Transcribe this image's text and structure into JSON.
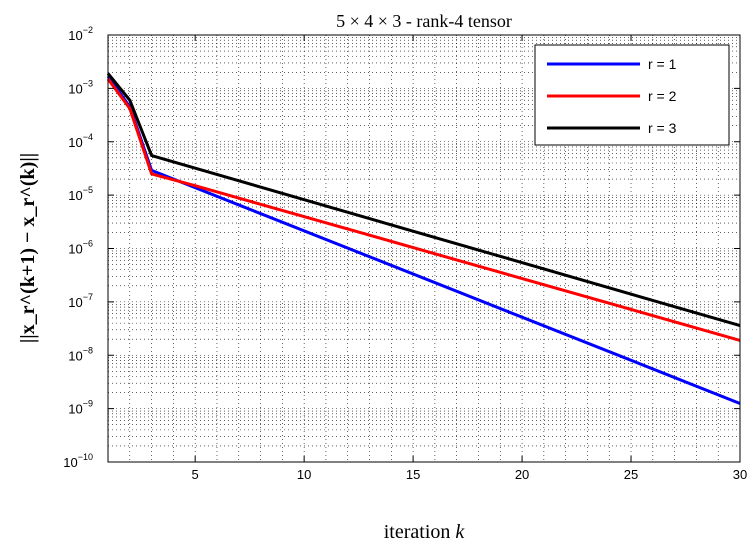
{
  "chart_data": {
    "type": "line",
    "title": "5 × 4 × 3 - rank-4 tensor",
    "xlabel_prefix": "iteration ",
    "xlabel_var": "k",
    "ylabel": "||x_r^(k+1) − x_r^(k)||",
    "xlim": [
      1,
      30
    ],
    "ylim": [
      1e-10,
      0.01
    ],
    "yscale": "log",
    "grid": true,
    "legend_position": "top-right",
    "xticks": [
      5,
      10,
      15,
      20,
      25,
      30
    ],
    "xtick_labels": [
      "5",
      "10",
      "15",
      "20",
      "25",
      "30"
    ],
    "yticks": [
      -10,
      -9,
      -8,
      -7,
      -6,
      -5,
      -4,
      -3,
      -2
    ],
    "ytick_base": "10",
    "ytick_exponents": [
      "−10",
      "−9",
      "−8",
      "−7",
      "−6",
      "−5",
      "−4",
      "−3",
      "−2"
    ],
    "series": [
      {
        "name": "r = 1",
        "color": "#0000ff",
        "x": [
          1,
          2,
          3,
          30
        ],
        "y": [
          0.0017,
          0.00045,
          2.9e-05,
          1.25e-09
        ]
      },
      {
        "name": "r = 2",
        "color": "#ff0000",
        "x": [
          1,
          2,
          3,
          5,
          30
        ],
        "y": [
          0.0015,
          0.00042,
          2.5e-05,
          1.5e-05,
          1.9e-08
        ]
      },
      {
        "name": "r = 3",
        "color": "#000000",
        "x": [
          1,
          2,
          3,
          30
        ],
        "y": [
          0.0019,
          0.0006,
          5.5e-05,
          3.6e-08
        ]
      }
    ]
  }
}
